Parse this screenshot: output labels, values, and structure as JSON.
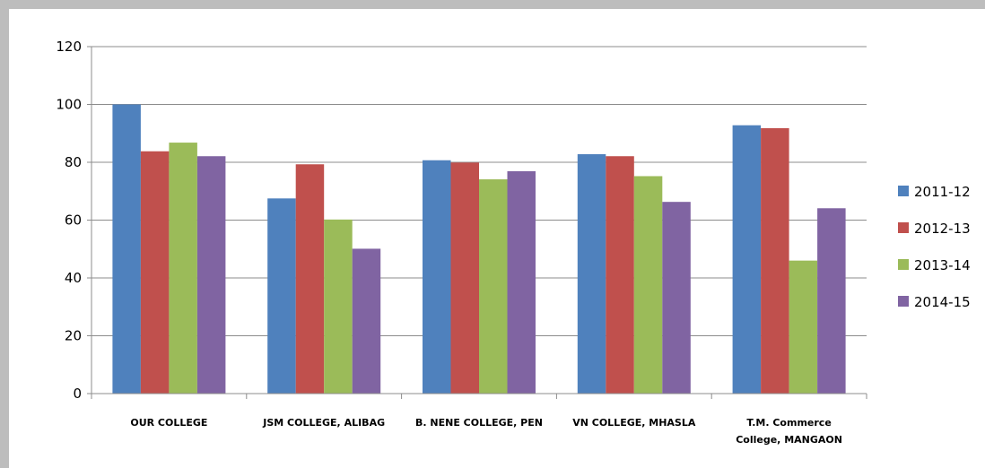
{
  "chart_data": {
    "type": "bar",
    "title": "",
    "xlabel": "",
    "ylabel": "",
    "ylim": [
      0,
      120
    ],
    "yticks": [
      0,
      20,
      40,
      60,
      80,
      100,
      120
    ],
    "grid": true,
    "legend_position": "right",
    "categories": [
      [
        "OUR COLLEGE"
      ],
      [
        "JSM COLLEGE, ALIBAG"
      ],
      [
        "B. NENE COLLEGE, PEN"
      ],
      [
        "VN COLLEGE, MHASLA"
      ],
      [
        "T.M. Commerce",
        "College, MANGAON"
      ]
    ],
    "series": [
      {
        "name": "2011-12",
        "color": "#4f81bd",
        "values": [
          100,
          67.5,
          80.7,
          82.8,
          92.8
        ]
      },
      {
        "name": "2012-13",
        "color": "#c0504d",
        "values": [
          83.8,
          79.3,
          79.9,
          82.1,
          91.8
        ]
      },
      {
        "name": "2013-14",
        "color": "#9bbb59",
        "values": [
          86.8,
          60.2,
          74.1,
          75.2,
          46
        ]
      },
      {
        "name": "2014-15",
        "color": "#8064a2",
        "values": [
          82.1,
          50.1,
          76.9,
          66.3,
          64.1
        ]
      }
    ]
  }
}
